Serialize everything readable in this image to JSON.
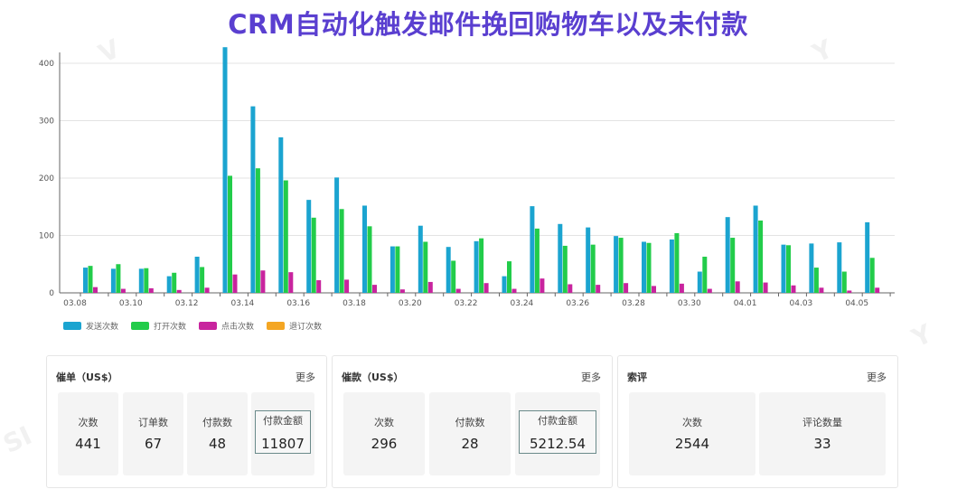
{
  "title": "CRM自动化触发邮件挽回购物车以及未付款",
  "colors": {
    "send": "#1BA4D0",
    "open": "#22CC4A",
    "click": "#C8249E",
    "unsub": "#F4A623",
    "title": "#5A3FD0"
  },
  "chart_data": {
    "type": "bar",
    "ylim": [
      0,
      400
    ],
    "yticks": [
      0,
      100,
      200,
      300,
      400
    ],
    "categories": [
      "03.08",
      "03.09",
      "03.10",
      "03.11",
      "03.12",
      "03.13",
      "03.14",
      "03.15",
      "03.16",
      "03.17",
      "03.18",
      "03.19",
      "03.20",
      "03.21",
      "03.22",
      "03.23",
      "03.24",
      "03.25",
      "03.26",
      "03.27",
      "03.28",
      "03.29",
      "03.30",
      "03.31",
      "04.01",
      "04.02",
      "04.03",
      "04.04",
      "04.05",
      "04.06"
    ],
    "tick_labels": [
      "03.08",
      "",
      "03.10",
      "",
      "03.12",
      "",
      "03.14",
      "",
      "03.16",
      "",
      "03.18",
      "",
      "03.20",
      "",
      "03.22",
      "",
      "03.24",
      "",
      "03.26",
      "",
      "03.28",
      "",
      "03.30",
      "",
      "04.01",
      "",
      "04.03",
      "",
      "04.05",
      ""
    ],
    "series": [
      {
        "name": "发送次数",
        "values": [
          44,
          42,
          42,
          29,
          63,
          428,
          325,
          271,
          162,
          201,
          152,
          81,
          117,
          80,
          90,
          29,
          151,
          120,
          114,
          99,
          89,
          93,
          37,
          132,
          152,
          84,
          86,
          88,
          123,
          0
        ]
      },
      {
        "name": "打开次数",
        "values": [
          47,
          50,
          43,
          35,
          45,
          204,
          217,
          196,
          131,
          146,
          116,
          81,
          89,
          56,
          95,
          55,
          112,
          82,
          84,
          96,
          87,
          104,
          63,
          96,
          126,
          83,
          44,
          37,
          61,
          0
        ]
      },
      {
        "name": "点击次数",
        "values": [
          10,
          7,
          8,
          5,
          9,
          32,
          39,
          36,
          22,
          23,
          14,
          6,
          19,
          7,
          17,
          7,
          25,
          15,
          14,
          17,
          12,
          16,
          7,
          20,
          18,
          13,
          9,
          4,
          9,
          0
        ]
      },
      {
        "name": "退订次数",
        "values": [
          0,
          0,
          0,
          0,
          0,
          0,
          0,
          0,
          0,
          0,
          0,
          0,
          0,
          0,
          0,
          0,
          0,
          0,
          0,
          0,
          0,
          0,
          0,
          0,
          0,
          0,
          0,
          0,
          0,
          0
        ]
      }
    ]
  },
  "panels": [
    {
      "title": "催单（US$）",
      "more": "更多",
      "cards": [
        {
          "label": "次数",
          "value": "441"
        },
        {
          "label": "订单数",
          "value": "67"
        },
        {
          "label": "付款数",
          "value": "48"
        },
        {
          "label": "付款金额",
          "value": "11807"
        }
      ]
    },
    {
      "title": "催款（US$）",
      "more": "更多",
      "cards": [
        {
          "label": "次数",
          "value": "296"
        },
        {
          "label": "付款数",
          "value": "28"
        },
        {
          "label": "付款金额",
          "value": "5212.54"
        }
      ]
    },
    {
      "title": "索评",
      "more": "更多",
      "cards": [
        {
          "label": "次数",
          "value": "2544"
        },
        {
          "label": "评论数量",
          "value": "33"
        }
      ]
    }
  ]
}
